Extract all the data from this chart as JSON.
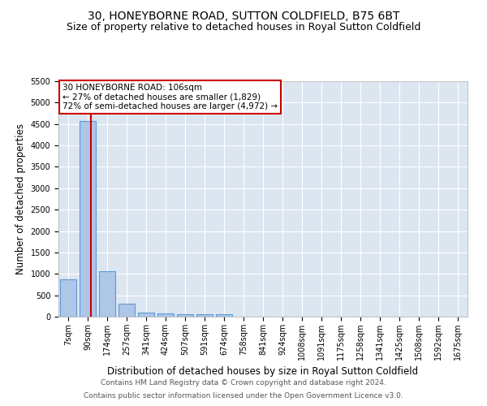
{
  "title": "30, HONEYBORNE ROAD, SUTTON COLDFIELD, B75 6BT",
  "subtitle": "Size of property relative to detached houses in Royal Sutton Coldfield",
  "xlabel": "Distribution of detached houses by size in Royal Sutton Coldfield",
  "ylabel": "Number of detached properties",
  "footer_line1": "Contains HM Land Registry data © Crown copyright and database right 2024.",
  "footer_line2": "Contains public sector information licensed under the Open Government Licence v3.0.",
  "categories": [
    "7sqm",
    "90sqm",
    "174sqm",
    "257sqm",
    "341sqm",
    "424sqm",
    "507sqm",
    "591sqm",
    "674sqm",
    "758sqm",
    "841sqm",
    "924sqm",
    "1008sqm",
    "1091sqm",
    "1175sqm",
    "1258sqm",
    "1341sqm",
    "1425sqm",
    "1508sqm",
    "1592sqm",
    "1675sqm"
  ],
  "values": [
    880,
    4570,
    1060,
    300,
    100,
    75,
    60,
    65,
    60,
    0,
    0,
    0,
    0,
    0,
    0,
    0,
    0,
    0,
    0,
    0,
    0
  ],
  "bar_color": "#aec6e8",
  "bar_edge_color": "#5b9bd5",
  "bar_linewidth": 0.8,
  "red_line_x": 1.15,
  "red_line_color": "#cc0000",
  "annotation_text": "30 HONEYBORNE ROAD: 106sqm\n← 27% of detached houses are smaller (1,829)\n72% of semi-detached houses are larger (4,972) →",
  "annotation_box_color": "#cc0000",
  "ylim": [
    0,
    5500
  ],
  "yticks": [
    0,
    500,
    1000,
    1500,
    2000,
    2500,
    3000,
    3500,
    4000,
    4500,
    5000,
    5500
  ],
  "background_color": "#dce6f1",
  "grid_color": "#ffffff",
  "title_fontsize": 10,
  "subtitle_fontsize": 9,
  "xlabel_fontsize": 8.5,
  "ylabel_fontsize": 8.5,
  "tick_fontsize": 7,
  "annotation_fontsize": 7.5,
  "footer_fontsize": 6.5
}
